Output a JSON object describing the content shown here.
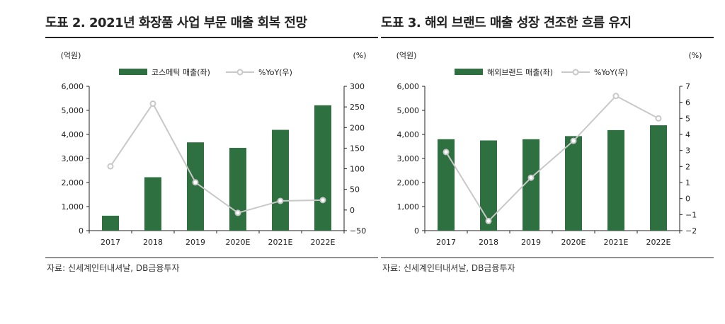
{
  "colors": {
    "bar": "#2e7040",
    "line": "#c8c8c8",
    "axis": "#222222"
  },
  "charts": [
    {
      "title": "도표 2. 2021년 화장품 사업 부문 매출 회복 전망",
      "source": "자료: 신세계인터내셔날, DB금융투자"
    },
    {
      "title": "도표 3. 해외 브랜드 매출 성장 견조한 흐름 유지",
      "source": "자료: 신세계인터내셔날, DB금융투자"
    }
  ],
  "chart_data": [
    {
      "type": "bar",
      "title": "도표 2. 2021년 화장품 사업 부문 매출 회복 전망",
      "categories": [
        "2017",
        "2018",
        "2019",
        "2020E",
        "2021E",
        "2022E"
      ],
      "series": [
        {
          "name": "코스메틱 매출(좌)",
          "axis": "left",
          "kind": "bar",
          "values": [
            620,
            2220,
            3670,
            3440,
            4190,
            5210
          ]
        },
        {
          "name": "%YoY(우)",
          "axis": "right",
          "kind": "line",
          "values": [
            106,
            258,
            67,
            -7,
            22,
            24
          ]
        }
      ],
      "ylabel_left": "(억원)",
      "ylabel_right": "(%)",
      "ylim_left": [
        0,
        6000
      ],
      "yticks_left": [
        0,
        1000,
        2000,
        3000,
        4000,
        5000,
        6000
      ],
      "ytick_labels_left": [
        "0",
        "1,000",
        "2,000",
        "3,000",
        "4,000",
        "5,000",
        "6,000"
      ],
      "ylim_right": [
        -50,
        300
      ],
      "yticks_right": [
        -50,
        0,
        50,
        100,
        150,
        200,
        250,
        300
      ],
      "ytick_labels_right": [
        "−50",
        "0",
        "50",
        "100",
        "150",
        "200",
        "250",
        "300"
      ],
      "legend": "top-center"
    },
    {
      "type": "bar",
      "title": "도표 3. 해외 브랜드 매출 성장 견조한 흐름 유지",
      "categories": [
        "2017",
        "2018",
        "2019",
        "2020E",
        "2021E",
        "2022E"
      ],
      "series": [
        {
          "name": "해외브랜드 매출(좌)",
          "axis": "left",
          "kind": "bar",
          "values": [
            3800,
            3750,
            3800,
            3930,
            4180,
            4380
          ]
        },
        {
          "name": "%YoY(우)",
          "axis": "right",
          "kind": "line",
          "values": [
            2.9,
            -1.4,
            1.3,
            3.6,
            6.4,
            5.0
          ]
        }
      ],
      "ylabel_left": "(억원)",
      "ylabel_right": "(%)",
      "ylim_left": [
        0,
        6000
      ],
      "yticks_left": [
        0,
        1000,
        2000,
        3000,
        4000,
        5000,
        6000
      ],
      "ytick_labels_left": [
        "0",
        "1,000",
        "2,000",
        "3,000",
        "4,000",
        "5,000",
        "6,000"
      ],
      "ylim_right": [
        -2,
        7
      ],
      "yticks_right": [
        -2,
        -1,
        0,
        1,
        2,
        3,
        4,
        5,
        6,
        7
      ],
      "ytick_labels_right": [
        "−2",
        "−1",
        "0",
        "1",
        "2",
        "3",
        "4",
        "5",
        "6",
        "7"
      ],
      "legend": "top-center"
    }
  ]
}
